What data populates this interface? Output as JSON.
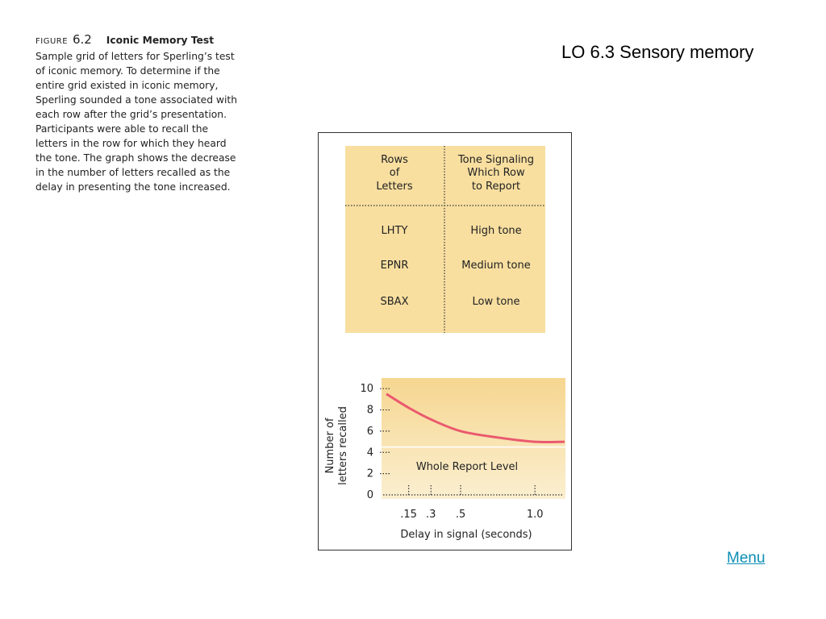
{
  "slide": {
    "title": "LO 6.3 Sensory memory",
    "menu_link": "Menu"
  },
  "caption": {
    "figure_word": "FIGURE",
    "figure_number": "6.2",
    "figure_title": "Iconic Memory Test",
    "body_lines": [
      "Sample grid of letters for Sperling’s test",
      "of iconic memory. To determine if the",
      "entire grid existed in iconic memory,",
      "Sperling sounded a tone associated with",
      "each row after the grid’s presentation.",
      "Participants were able to recall the",
      "letters in the row for which they heard",
      "the tone. The graph shows the decrease",
      "in the number of letters recalled as the",
      "delay in presenting the tone increased."
    ]
  },
  "table": {
    "header_left": [
      "Rows",
      "of",
      "Letters"
    ],
    "header_right": [
      "Tone Signaling",
      "Which Row",
      "to Report"
    ],
    "rows": [
      {
        "letters": "LHTY",
        "tone": "High tone"
      },
      {
        "letters": "EPNR",
        "tone": "Medium tone"
      },
      {
        "letters": "SBAX",
        "tone": "Low tone"
      }
    ]
  },
  "colors": {
    "table_fill": "#f8dfa0",
    "plot_fill_top": "#f6d690",
    "plot_fill_bottom": "#fbefd0",
    "curve": "#ea5a6e",
    "whole_report_line": "#ffffff"
  },
  "chart_data": {
    "type": "line",
    "xlabel": "Delay in signal (seconds)",
    "ylabel_lines": [
      "Number of",
      "letters recalled"
    ],
    "x_tick_labels": [
      ".15",
      ".3",
      ".5",
      "1.0"
    ],
    "x_ticks": [
      0.15,
      0.3,
      0.5,
      1.0
    ],
    "y_tick_labels": [
      "0",
      "2",
      "4",
      "6",
      "8",
      "10"
    ],
    "y_ticks": [
      0,
      2,
      4,
      6,
      8,
      10
    ],
    "ylim": [
      0,
      11
    ],
    "annotation": "Whole Report Level",
    "whole_report_level": 4.5,
    "series": [
      {
        "x": [
          0.0,
          0.15,
          0.3,
          0.5,
          0.75,
          1.0,
          1.2
        ],
        "values": [
          9.5,
          8.2,
          7.1,
          6.0,
          5.4,
          5.0,
          5.0
        ]
      }
    ]
  }
}
